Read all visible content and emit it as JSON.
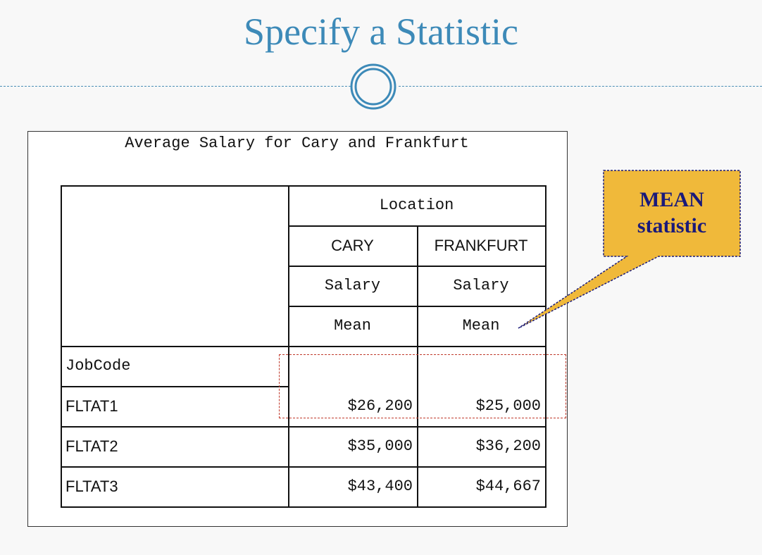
{
  "slide": {
    "title": "Specify a Statistic"
  },
  "report": {
    "title": "Average Salary for Cary and Frankfurt",
    "header": {
      "class_var": "Location",
      "locations": [
        "CARY",
        "FRANKFURT"
      ],
      "analysis_var": [
        "Salary",
        "Salary"
      ],
      "statistic": [
        "Mean",
        "Mean"
      ]
    },
    "row_label": "JobCode",
    "rows": [
      {
        "job": "FLTAT1",
        "cary": "$26,200",
        "frankfurt": "$25,000"
      },
      {
        "job": "FLTAT2",
        "cary": "$35,000",
        "frankfurt": "$36,200"
      },
      {
        "job": "FLTAT3",
        "cary": "$43,400",
        "frankfurt": "$44,667"
      }
    ]
  },
  "callout": {
    "line1": "MEAN",
    "line2": "statistic",
    "fill_color": "#f0b93a",
    "text_color": "#1a1a7a"
  },
  "colors": {
    "title": "#3d8ab8",
    "highlight_border": "#c0392b"
  }
}
